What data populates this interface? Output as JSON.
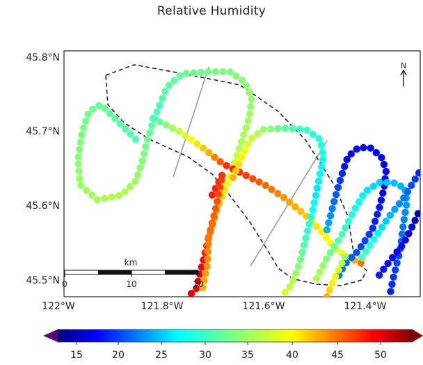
{
  "title": "Relative Humidity",
  "map": {
    "lon_ticks": [
      "122°W",
      "121.8°W",
      "121.6°W",
      "121.4°W"
    ],
    "lat_ticks": [
      "45.8°N",
      "45.7°N",
      "45.6°N",
      "45.5°N"
    ],
    "north_label": "N",
    "scale_bar": {
      "unit": "km",
      "labels": [
        "0",
        "10",
        "20"
      ]
    }
  },
  "colorbar": {
    "ticks": [
      "15",
      "20",
      "25",
      "30",
      "35",
      "40",
      "45",
      "50"
    ]
  },
  "colors": {
    "boundary": "#222222",
    "track_line": "#999999"
  }
}
